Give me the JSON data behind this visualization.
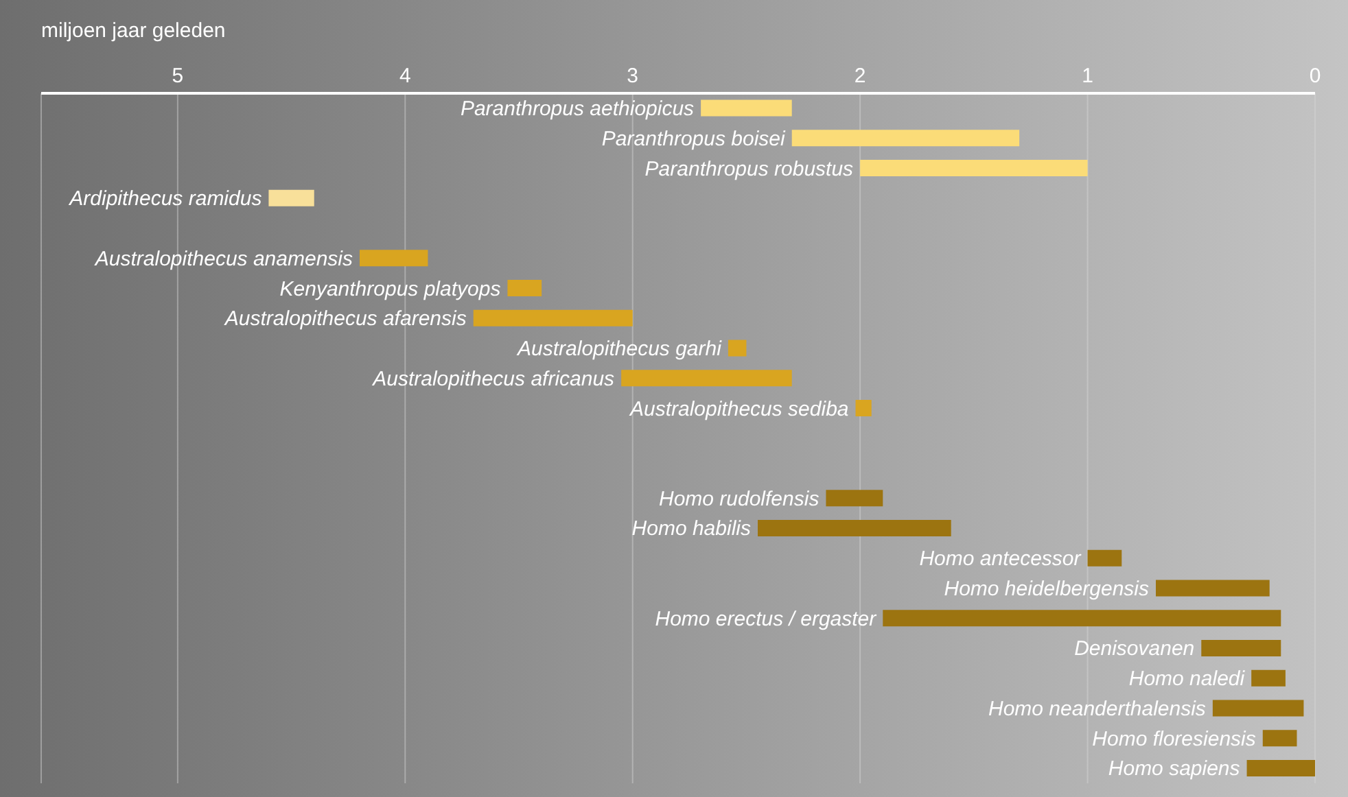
{
  "chart_data": {
    "type": "bar",
    "orientation": "horizontal",
    "xlabel": "miljoen jaar geleden",
    "categories": [
      "Paranthropus aethiopicus",
      "Paranthropus boisei",
      "Paranthropus robustus",
      "Ardipithecus ramidus",
      null,
      "Australopithecus anamensis",
      "Kenyanthropus platyops",
      "Australopithecus afarensis",
      "Australopithecus garhi",
      "Australopithecus africanus",
      "Australopithecus sediba",
      null,
      null,
      "Homo rudolfensis",
      "Homo habilis",
      "Homo antecessor",
      "Homo heidelbergensis",
      "Homo erectus / ergaster",
      "Denisovanen",
      "Homo naledi",
      "Homo neanderthalensis",
      "Homo floresiensis",
      "Homo sapiens"
    ],
    "base": [
      2.3,
      1.3,
      1.0,
      4.4,
      null,
      3.9,
      3.4,
      3.0,
      2.5,
      2.3,
      1.95,
      null,
      null,
      1.9,
      1.6,
      0.85,
      0.2,
      0.15,
      0.15,
      0.13,
      0.05,
      0.08,
      0
    ],
    "values": [
      0.4,
      1.0,
      1.0,
      0.2,
      null,
      0.3,
      0.15,
      0.7,
      0.08,
      0.75,
      0.07,
      null,
      null,
      0.25,
      0.85,
      0.15,
      0.5,
      1.75,
      0.35,
      0.15,
      0.4,
      0.15,
      0.3
    ],
    "colors": [
      "#fbdc78",
      "#fbdc78",
      "#fbdc78",
      "#f8e09a",
      null,
      "#d9a520",
      "#d9a520",
      "#d9a520",
      "#d9a520",
      "#d9a520",
      "#d9a520",
      null,
      null,
      "#9c7410",
      "#9c7410",
      "#9c7410",
      "#9c7410",
      "#9c7410",
      "#9c7410",
      "#9c7410",
      "#9c7410",
      "#9c7410",
      "#9c7410"
    ],
    "xlim": [
      5.6,
      0
    ],
    "xticks": [
      5,
      4,
      3,
      2,
      1,
      0
    ],
    "grid": "x"
  }
}
